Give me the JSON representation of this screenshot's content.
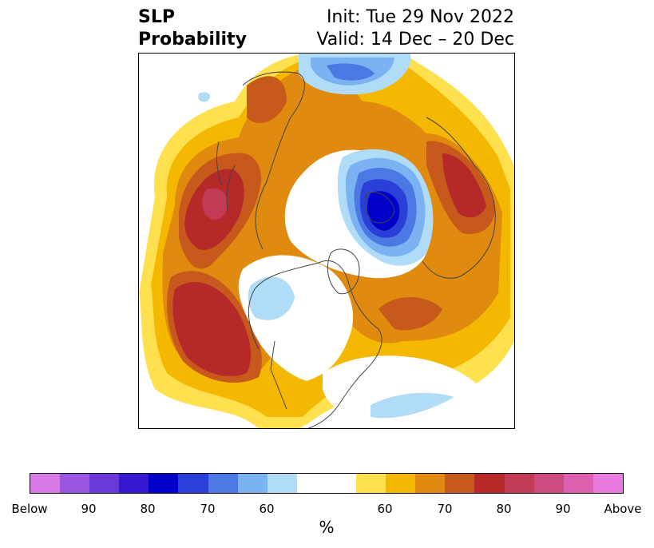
{
  "title": {
    "variable": "SLP",
    "kind": "Probability",
    "init": "Init: Tue 29 Nov 2022",
    "valid": "Valid: 14 Dec – 20 Dec"
  },
  "map": {
    "projection": "north-polar-stereographic",
    "colors": {
      "above_60": "#ffe14f",
      "above_65": "#f5b800",
      "above_70": "#e08b10",
      "above_75": "#c8591c",
      "above_80": "#b52a28",
      "above_85": "#c23a55",
      "below_60": "#b0dcf8",
      "below_65": "#7ab2f2",
      "below_70": "#4c78e4",
      "below_75": "#2a3fd8",
      "below_80": "#0000c8",
      "land_lines": "#444444"
    }
  },
  "colorbar": {
    "colors": [
      "#d87ae8",
      "#9a55e0",
      "#6a38d8",
      "#3518d0",
      "#0000c8",
      "#2a3fd8",
      "#4c78e4",
      "#7ab2f2",
      "#b0dcf8",
      "#ffffff",
      "#ffffff",
      "#ffe14f",
      "#f5b800",
      "#e08b10",
      "#c8591c",
      "#b52a28",
      "#c23a55",
      "#cc4a80",
      "#dc5fb0",
      "#e87ae0"
    ],
    "tick_labels": [
      "Below",
      "90",
      "80",
      "70",
      "60",
      "60",
      "70",
      "80",
      "90",
      "Above"
    ],
    "unit": "%"
  }
}
